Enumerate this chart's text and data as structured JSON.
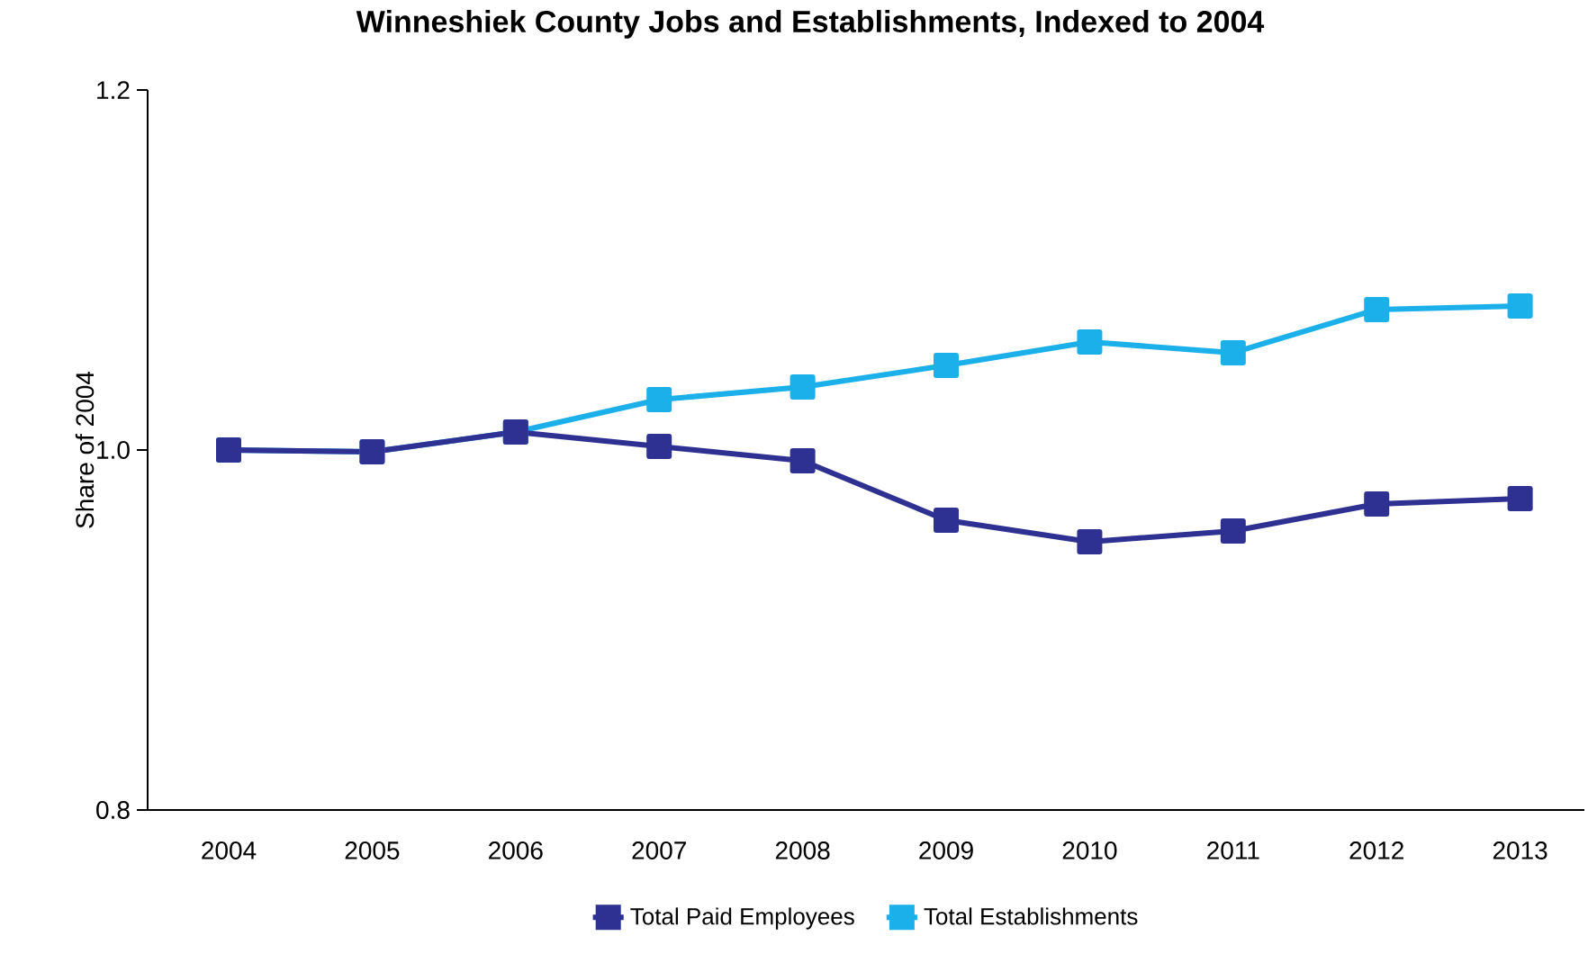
{
  "chart_data": {
    "type": "line",
    "title": "Winneshiek County Jobs and Establishments, Indexed to 2004",
    "ylabel": "Share of 2004",
    "categories": [
      "2004",
      "2005",
      "2006",
      "2007",
      "2008",
      "2009",
      "2010",
      "2011",
      "2012",
      "2013"
    ],
    "series": [
      {
        "name": "Total Paid Employees",
        "color": "#2e3192",
        "values": [
          1.0,
          0.999,
          1.01,
          1.002,
          0.994,
          0.961,
          0.949,
          0.955,
          0.97,
          0.973
        ]
      },
      {
        "name": "Total Establishments",
        "color": "#1cb0ea",
        "values": [
          1.0,
          0.999,
          1.01,
          1.028,
          1.035,
          1.047,
          1.06,
          1.054,
          1.078,
          1.08
        ]
      }
    ],
    "ylim": [
      0.8,
      1.2
    ],
    "yticks": [
      {
        "value": 0.8,
        "label": "0.8"
      },
      {
        "value": 1.0,
        "label": "1.0"
      },
      {
        "value": 1.2,
        "label": "1.2"
      }
    ],
    "marker": "square",
    "line_style": "solid",
    "legend": "bottom",
    "grid": false
  }
}
